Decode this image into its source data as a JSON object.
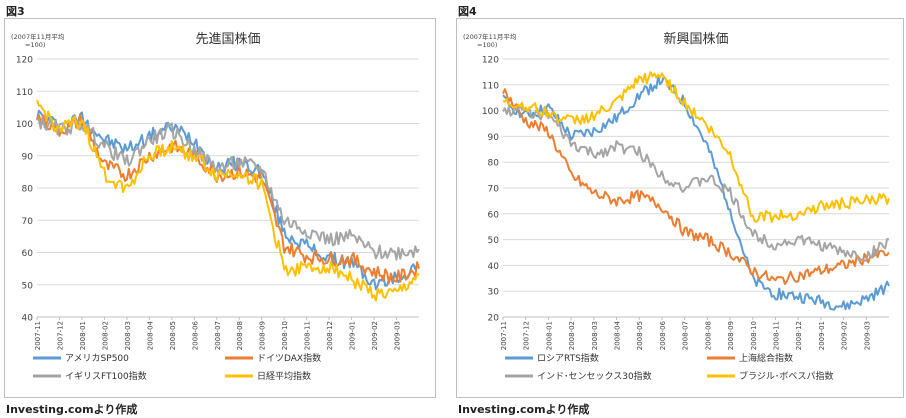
{
  "figures": [
    {
      "label": "図3",
      "source": "Investing.comより作成"
    },
    {
      "label": "図4",
      "source": "Investing.comより作成"
    }
  ],
  "chart_data": [
    {
      "type": "line",
      "title": "先進国株価",
      "unit_note": [
        "(2007年11月平均",
        "=100)"
      ],
      "ylim": [
        40,
        120
      ],
      "yticks": [
        40,
        50,
        60,
        70,
        80,
        90,
        100,
        110,
        120
      ],
      "x_tick_labels": [
        "2007-11",
        "2007-12",
        "2008-01",
        "2008-02",
        "2008-03",
        "2008-04",
        "2008-05",
        "2008-06",
        "2008-07",
        "2008-08",
        "2008-09",
        "2008-10",
        "2008-11",
        "2008-12",
        "2009-01",
        "2009-02",
        "2009-03"
      ],
      "x_months": [
        "2007-11",
        "2007-12",
        "2008-01",
        "2008-02",
        "2008-03",
        "2008-04",
        "2008-05",
        "2008-06",
        "2008-07",
        "2008-08",
        "2008-09",
        "2008-10",
        "2008-11",
        "2008-12",
        "2009-01",
        "2009-02",
        "2009-03",
        "2009-04"
      ],
      "grid": "horizontal",
      "legend_position": "bottom",
      "series": [
        {
          "name": "アメリカSP500",
          "color": "#5b9bd5",
          "values": [
            103,
            99,
            102,
            95,
            92,
            96,
            99,
            95,
            86,
            88,
            85,
            66,
            62,
            58,
            57,
            50,
            52,
            56
          ]
        },
        {
          "name": "ドイツDAX指数",
          "color": "#ed7d31",
          "values": [
            102,
            98,
            101,
            87,
            84,
            90,
            93,
            90,
            84,
            85,
            83,
            62,
            59,
            58,
            58,
            54,
            52,
            55
          ]
        },
        {
          "name": "イギリスFT100指数",
          "color": "#a5a5a5",
          "values": [
            101,
            98,
            100,
            93,
            88,
            95,
            98,
            92,
            86,
            88,
            86,
            70,
            67,
            64,
            65,
            60,
            60,
            61
          ]
        },
        {
          "name": "日経平均指数",
          "color": "#ffc000",
          "values": [
            106,
            98,
            101,
            84,
            80,
            90,
            93,
            90,
            84,
            85,
            81,
            55,
            55,
            56,
            52,
            47,
            47,
            53
          ]
        }
      ]
    },
    {
      "type": "line",
      "title": "新興国株価",
      "unit_note": [
        "(2007年11月平均",
        "=100)"
      ],
      "ylim": [
        20,
        120
      ],
      "yticks": [
        20,
        30,
        40,
        50,
        60,
        70,
        80,
        90,
        100,
        110,
        120
      ],
      "x_tick_labels": [
        "2007-11",
        "2007-12",
        "2008-01",
        "2008-02",
        "2008-03",
        "2008-04",
        "2008-05",
        "2008-06",
        "2008-07",
        "2008-08",
        "2008-09",
        "2008-10",
        "2008-11",
        "2008-12",
        "2009-01",
        "2009-02",
        "2009-03"
      ],
      "x_months": [
        "2007-11",
        "2007-12",
        "2008-01",
        "2008-02",
        "2008-03",
        "2008-04",
        "2008-05",
        "2008-06",
        "2008-07",
        "2008-08",
        "2008-09",
        "2008-10",
        "2008-11",
        "2008-12",
        "2009-01",
        "2009-02",
        "2009-03",
        "2009-04"
      ],
      "grid": "horizontal",
      "legend_position": "bottom",
      "series": [
        {
          "name": "ロシアRTS指数",
          "color": "#5b9bd5",
          "values": [
            104,
            98,
            101,
            90,
            92,
            97,
            106,
            112,
            103,
            86,
            62,
            34,
            29,
            28,
            26,
            24,
            27,
            32
          ]
        },
        {
          "name": "上海総合指数",
          "color": "#ed7d31",
          "values": [
            108,
            96,
            92,
            75,
            68,
            65,
            67,
            63,
            53,
            50,
            45,
            38,
            34,
            36,
            38,
            40,
            43,
            45
          ]
        },
        {
          "name": "インド･センセックス30指数",
          "color": "#a5a5a5",
          "values": [
            100,
            100,
            98,
            87,
            83,
            86,
            84,
            75,
            70,
            74,
            68,
            52,
            48,
            50,
            48,
            45,
            43,
            50
          ]
        },
        {
          "name": "ブラジル･ボベスパ指数",
          "color": "#ffc000",
          "values": [
            103,
            102,
            99,
            96,
            98,
            103,
            112,
            114,
            103,
            94,
            83,
            59,
            59,
            60,
            63,
            64,
            65,
            66
          ]
        }
      ]
    }
  ]
}
